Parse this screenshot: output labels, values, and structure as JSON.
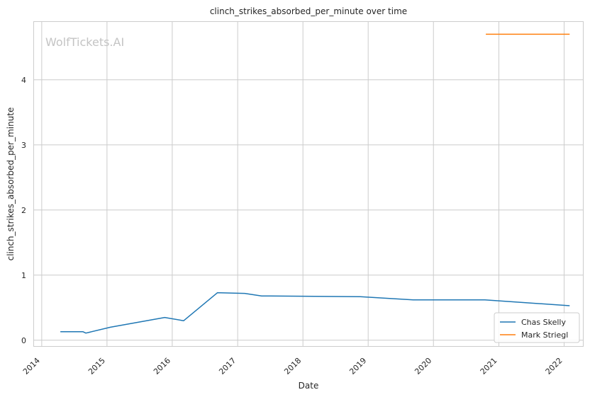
{
  "chart_data": {
    "type": "line",
    "title": "clinch_strikes_absorbed_per_minute over time",
    "xlabel": "Date",
    "ylabel": "clinch_strikes_absorbed_per_minute",
    "watermark": "WolfTickets.AI",
    "x_type": "date",
    "xlim": [
      "2013-11-15",
      "2022-04-20"
    ],
    "ylim": [
      -0.1,
      4.9
    ],
    "x_ticks": [
      {
        "date": "2014-01-01",
        "label": "2014"
      },
      {
        "date": "2015-01-01",
        "label": "2015"
      },
      {
        "date": "2016-01-01",
        "label": "2016"
      },
      {
        "date": "2017-01-01",
        "label": "2017"
      },
      {
        "date": "2018-01-01",
        "label": "2018"
      },
      {
        "date": "2019-01-01",
        "label": "2019"
      },
      {
        "date": "2020-01-01",
        "label": "2020"
      },
      {
        "date": "2021-01-01",
        "label": "2021"
      },
      {
        "date": "2022-01-01",
        "label": "2022"
      }
    ],
    "y_ticks": [
      {
        "value": 0,
        "label": "0"
      },
      {
        "value": 1,
        "label": "1"
      },
      {
        "value": 2,
        "label": "2"
      },
      {
        "value": 3,
        "label": "3"
      },
      {
        "value": 4,
        "label": "4"
      }
    ],
    "grid": true,
    "legend_position": "lower-right",
    "series": [
      {
        "name": "Chas Skelly",
        "color": "#1f77b4",
        "points": [
          {
            "x": "2014-04-15",
            "y": 0.13
          },
          {
            "x": "2014-08-20",
            "y": 0.13
          },
          {
            "x": "2014-09-05",
            "y": 0.11
          },
          {
            "x": "2015-01-20",
            "y": 0.2
          },
          {
            "x": "2015-11-20",
            "y": 0.35
          },
          {
            "x": "2016-03-05",
            "y": 0.3
          },
          {
            "x": "2016-09-10",
            "y": 0.73
          },
          {
            "x": "2017-02-10",
            "y": 0.72
          },
          {
            "x": "2017-05-15",
            "y": 0.68
          },
          {
            "x": "2018-11-15",
            "y": 0.67
          },
          {
            "x": "2019-09-10",
            "y": 0.62
          },
          {
            "x": "2020-10-15",
            "y": 0.62
          },
          {
            "x": "2022-02-01",
            "y": 0.53
          }
        ]
      },
      {
        "name": "Mark Striegl",
        "color": "#ff7f0e",
        "points": [
          {
            "x": "2020-10-20",
            "y": 4.7
          },
          {
            "x": "2022-02-01",
            "y": 4.7
          }
        ]
      }
    ]
  }
}
